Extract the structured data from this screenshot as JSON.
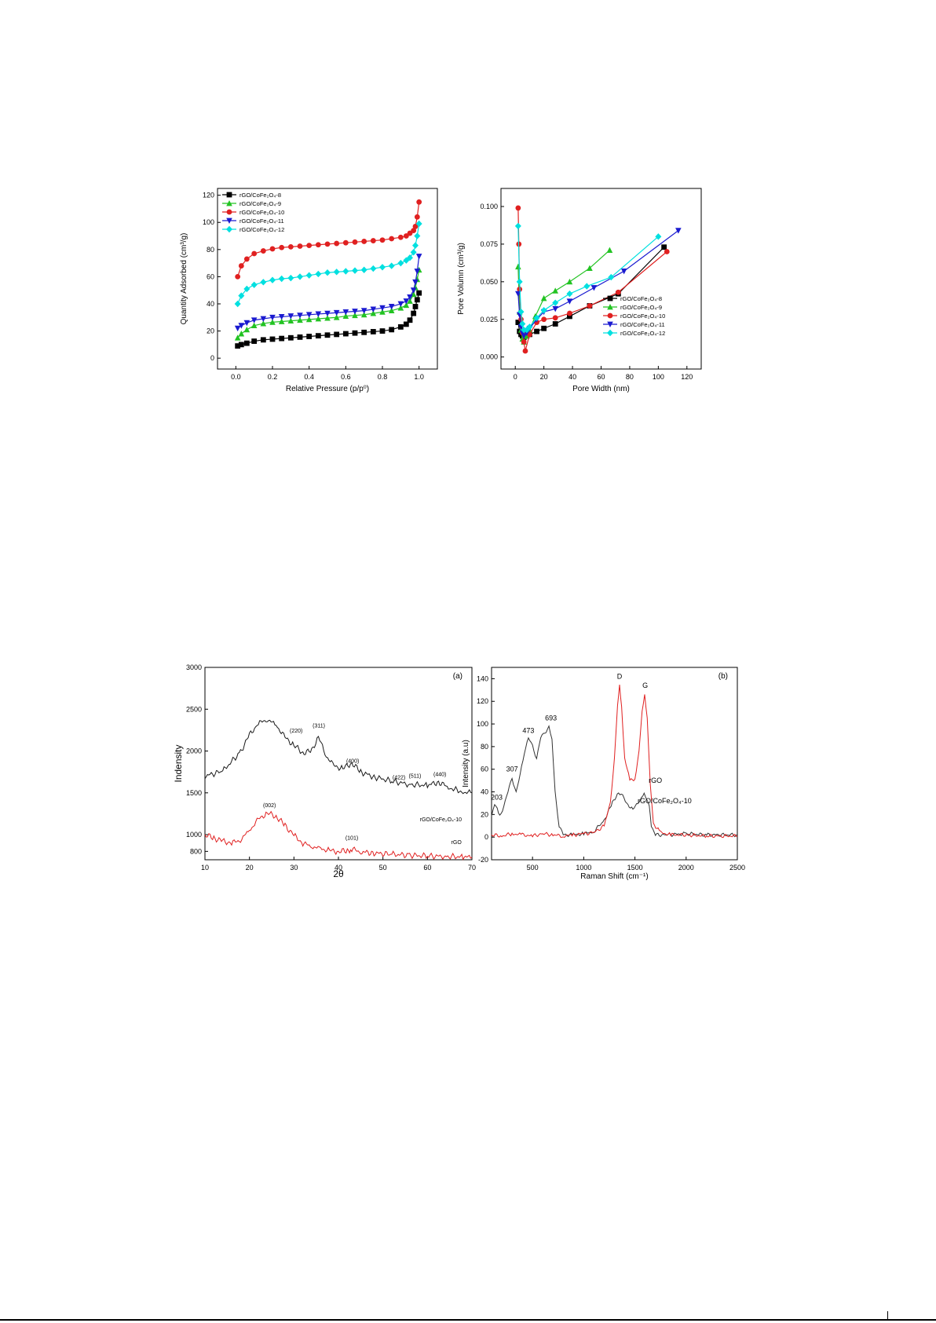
{
  "chart_data": [
    {
      "type": "line",
      "xlabel": "Relative Pressure (p/p⁰)",
      "ylabel": "Quantity Adsorbed (cm³/g)",
      "xlim": [
        -0.1,
        1.1
      ],
      "ylim": [
        -8,
        125
      ],
      "xticks": [
        "0.0",
        "0.2",
        "0.4",
        "0.6",
        "0.8",
        "1.0"
      ],
      "xtick_values": [
        0,
        0.2,
        0.4,
        0.6,
        0.8,
        1.0
      ],
      "yticks": [
        "0",
        "20",
        "40",
        "60",
        "80",
        "100",
        "120"
      ],
      "ytick_values": [
        0,
        20,
        40,
        60,
        80,
        100,
        120
      ],
      "legend_position": "top-left",
      "series": [
        {
          "name": "rGO/CoFe₂O₄-8",
          "color": "#000000",
          "marker": "square",
          "x": [
            0.01,
            0.03,
            0.06,
            0.1,
            0.15,
            0.2,
            0.25,
            0.3,
            0.35,
            0.4,
            0.45,
            0.5,
            0.55,
            0.6,
            0.65,
            0.7,
            0.75,
            0.8,
            0.85,
            0.9,
            0.93,
            0.95,
            0.97,
            0.98,
            0.99,
            1.0
          ],
          "y": [
            9,
            10,
            11,
            12.5,
            13.5,
            14,
            14.5,
            15,
            15.5,
            16,
            16.5,
            17,
            17.5,
            18,
            18.5,
            19,
            19.5,
            20,
            21,
            23,
            25,
            28,
            33,
            38,
            43,
            48
          ]
        },
        {
          "name": "rGO/CoFe₂O₄-9",
          "color": "#22c322",
          "marker": "triangle-up",
          "x": [
            0.01,
            0.03,
            0.06,
            0.1,
            0.15,
            0.2,
            0.25,
            0.3,
            0.35,
            0.4,
            0.45,
            0.5,
            0.55,
            0.6,
            0.65,
            0.7,
            0.75,
            0.8,
            0.85,
            0.9,
            0.93,
            0.95,
            0.97,
            0.98,
            0.99,
            1.0
          ],
          "y": [
            15,
            18,
            21,
            24,
            25.5,
            26.5,
            27,
            27.5,
            28,
            28.5,
            29,
            29.5,
            30,
            31,
            31.5,
            32,
            33,
            34,
            35,
            37,
            39,
            42,
            47,
            52,
            58,
            65
          ]
        },
        {
          "name": "rGO/CoFe₂O₄-10",
          "color": "#e02020",
          "marker": "circle",
          "x": [
            0.01,
            0.03,
            0.06,
            0.1,
            0.15,
            0.2,
            0.25,
            0.3,
            0.35,
            0.4,
            0.45,
            0.5,
            0.55,
            0.6,
            0.65,
            0.7,
            0.75,
            0.8,
            0.85,
            0.9,
            0.93,
            0.95,
            0.97,
            0.98,
            0.99,
            1.0
          ],
          "y": [
            60,
            68,
            73,
            77,
            79,
            80.5,
            81.5,
            82,
            82.5,
            83,
            83.5,
            84,
            84.5,
            85,
            85.5,
            86,
            86.5,
            87,
            88,
            89,
            90,
            92,
            94,
            97,
            104,
            115
          ]
        },
        {
          "name": "rGO/CoFe₂O₄-11",
          "color": "#1a1ad0",
          "marker": "triangle-down",
          "x": [
            0.01,
            0.03,
            0.06,
            0.1,
            0.15,
            0.2,
            0.25,
            0.3,
            0.35,
            0.4,
            0.45,
            0.5,
            0.55,
            0.6,
            0.65,
            0.7,
            0.75,
            0.8,
            0.85,
            0.9,
            0.93,
            0.95,
            0.97,
            0.98,
            0.99,
            1.0
          ],
          "y": [
            22,
            24,
            26,
            28,
            29,
            30,
            30.5,
            31,
            31.5,
            32,
            32.5,
            33,
            33.5,
            34,
            34.5,
            35,
            36,
            37,
            38,
            40,
            42,
            45,
            50,
            56,
            64,
            75
          ]
        },
        {
          "name": "rGO/CoFe₂O₄-12",
          "color": "#00e0e0",
          "marker": "star",
          "x": [
            0.01,
            0.03,
            0.06,
            0.1,
            0.15,
            0.2,
            0.25,
            0.3,
            0.35,
            0.4,
            0.45,
            0.5,
            0.55,
            0.6,
            0.65,
            0.7,
            0.75,
            0.8,
            0.85,
            0.9,
            0.93,
            0.95,
            0.97,
            0.98,
            0.99,
            1.0
          ],
          "y": [
            40,
            46,
            51,
            54,
            56,
            57.5,
            58.5,
            59,
            60,
            61,
            62,
            63,
            63.5,
            64,
            64.5,
            65,
            66,
            67,
            68,
            70,
            72,
            74,
            78,
            83,
            90,
            99
          ]
        }
      ]
    },
    {
      "type": "line",
      "xlabel": "Pore Width (nm)",
      "ylabel": "Pore Volumn (cm³/g)",
      "xlim": [
        -10,
        130
      ],
      "ylim": [
        -0.008,
        0.112
      ],
      "xticks": [
        "0",
        "20",
        "40",
        "60",
        "80",
        "100",
        "120"
      ],
      "xtick_values": [
        0,
        20,
        40,
        60,
        80,
        100,
        120
      ],
      "yticks": [
        "0.000",
        "0.025",
        "0.050",
        "0.075",
        "0.100"
      ],
      "ytick_values": [
        0,
        0.025,
        0.05,
        0.075,
        0.1
      ],
      "legend_position": "center-right",
      "series": [
        {
          "name": "rGO/CoFe₂O₄-8",
          "color": "#000000",
          "marker": "square",
          "x": [
            2,
            3,
            4,
            5,
            6,
            8,
            10,
            15,
            20,
            28,
            38,
            52,
            72,
            104
          ],
          "y": [
            0.023,
            0.017,
            0.015,
            0.014,
            0.013,
            0.014,
            0.015,
            0.017,
            0.019,
            0.022,
            0.027,
            0.034,
            0.042,
            0.073
          ]
        },
        {
          "name": "rGO/CoFe₂O₄-9",
          "color": "#22c322",
          "marker": "triangle-up",
          "x": [
            2,
            3,
            4,
            5,
            6,
            8,
            10,
            14,
            20,
            28,
            38,
            52,
            66
          ],
          "y": [
            0.06,
            0.03,
            0.018,
            0.012,
            0.01,
            0.014,
            0.018,
            0.027,
            0.039,
            0.044,
            0.05,
            0.059,
            0.071
          ]
        },
        {
          "name": "rGO/CoFe₂O₄-10",
          "color": "#e02020",
          "marker": "circle",
          "x": [
            2,
            2.5,
            3,
            4,
            5,
            6,
            7,
            10,
            15,
            20,
            28,
            38,
            52,
            72,
            106
          ],
          "y": [
            0.099,
            0.075,
            0.045,
            0.025,
            0.016,
            0.01,
            0.004,
            0.015,
            0.023,
            0.025,
            0.026,
            0.029,
            0.034,
            0.043,
            0.07
          ]
        },
        {
          "name": "rGO/CoFe₂O₄-11",
          "color": "#1a1ad0",
          "marker": "triangle-down",
          "x": [
            2,
            3,
            4,
            5,
            6,
            8,
            10,
            15,
            20,
            28,
            38,
            55,
            76,
            114
          ],
          "y": [
            0.042,
            0.028,
            0.02,
            0.016,
            0.014,
            0.016,
            0.019,
            0.025,
            0.03,
            0.032,
            0.037,
            0.046,
            0.057,
            0.084
          ]
        },
        {
          "name": "rGO/CoFe₂O₄-12",
          "color": "#00e0e0",
          "marker": "star",
          "x": [
            2,
            3,
            4,
            5,
            6,
            8,
            10,
            15,
            20,
            28,
            38,
            50,
            67,
            100
          ],
          "y": [
            0.087,
            0.05,
            0.03,
            0.022,
            0.018,
            0.018,
            0.02,
            0.026,
            0.031,
            0.036,
            0.042,
            0.047,
            0.053,
            0.08
          ]
        }
      ]
    },
    {
      "type": "line",
      "panel_label": "(a)",
      "xlabel": "2θ",
      "ylabel": "Indensity",
      "xlim": [
        10,
        70
      ],
      "ylim": [
        700,
        3000
      ],
      "xticks": [
        "10",
        "20",
        "30",
        "40",
        "50",
        "60",
        "70"
      ],
      "xtick_values": [
        10,
        20,
        30,
        40,
        50,
        60,
        70
      ],
      "yticks": [
        "800",
        "1000",
        "1500",
        "2000",
        "2500",
        "3000"
      ],
      "ytick_values": [
        800,
        1000,
        1500,
        2000,
        2500,
        3000
      ],
      "annotations": [
        {
          "text": "(220)",
          "x": 30.5,
          "y": 2220
        },
        {
          "text": "(311)",
          "x": 35.6,
          "y": 2280
        },
        {
          "text": "(400)",
          "x": 43.2,
          "y": 1860
        },
        {
          "text": "(422)",
          "x": 53.6,
          "y": 1660
        },
        {
          "text": "(511)",
          "x": 57.2,
          "y": 1680
        },
        {
          "text": "(440)",
          "x": 62.8,
          "y": 1700
        },
        {
          "text": "(002)",
          "x": 24.5,
          "y": 1330
        },
        {
          "text": "(101)",
          "x": 43,
          "y": 940
        },
        {
          "text": "rGO/CoFe₂O₄-10",
          "x": 63,
          "y": 1160
        },
        {
          "text": "rGO",
          "x": 66.5,
          "y": 890
        }
      ],
      "series": [
        {
          "name": "rGO/CoFe₂O₄-10",
          "color": "#1a1a1a",
          "x": [
            10,
            14,
            18,
            20,
            22,
            24,
            26,
            28,
            30,
            32,
            34,
            35.5,
            37,
            39,
            41,
            43,
            45,
            48,
            52,
            56,
            60,
            62.5,
            65,
            68,
            70
          ],
          "y": [
            1700,
            1760,
            1990,
            2190,
            2330,
            2380,
            2310,
            2160,
            2070,
            1980,
            2000,
            2180,
            1960,
            1820,
            1790,
            1860,
            1750,
            1690,
            1640,
            1600,
            1590,
            1630,
            1560,
            1510,
            1500
          ]
        },
        {
          "name": "rGO",
          "color": "#e02020",
          "x": [
            10,
            12,
            14,
            16,
            18,
            20,
            22,
            24,
            26,
            28,
            30,
            32,
            34,
            36,
            38,
            40,
            42,
            43,
            45,
            48,
            52,
            56,
            60,
            64,
            68,
            70
          ],
          "y": [
            1000,
            960,
            920,
            900,
            940,
            1050,
            1180,
            1260,
            1220,
            1110,
            990,
            900,
            860,
            830,
            810,
            800,
            810,
            830,
            795,
            780,
            765,
            755,
            745,
            740,
            735,
            730
          ]
        }
      ]
    },
    {
      "type": "line",
      "panel_label": "(b)",
      "xlabel": "Raman Shift (cm⁻¹)",
      "ylabel": "Intensity (a.u)",
      "xlim": [
        100,
        2500
      ],
      "ylim": [
        -20,
        150
      ],
      "xticks": [
        "500",
        "1000",
        "1500",
        "2000",
        "2500"
      ],
      "xtick_values": [
        500,
        1000,
        1500,
        2000,
        2500
      ],
      "yticks": [
        "-20",
        "0",
        "20",
        "40",
        "60",
        "80",
        "100",
        "120",
        "140"
      ],
      "ytick_values": [
        -20,
        0,
        20,
        40,
        60,
        80,
        100,
        120,
        140
      ],
      "annotations": [
        {
          "text": "203",
          "x": 150,
          "y": 33
        },
        {
          "text": "307",
          "x": 300,
          "y": 58
        },
        {
          "text": "473",
          "x": 460,
          "y": 92
        },
        {
          "text": "693",
          "x": 680,
          "y": 103
        },
        {
          "text": "D",
          "x": 1350,
          "y": 140
        },
        {
          "text": "G",
          "x": 1600,
          "y": 132
        },
        {
          "text": "rGO",
          "x": 1700,
          "y": 48
        },
        {
          "text": "rGO/CoFe₂O₄-10",
          "x": 1790,
          "y": 30
        }
      ],
      "series": [
        {
          "name": "rGO/CoFe₂O₄-10",
          "color": "#333333",
          "x": [
            100,
            130,
            180,
            220,
            260,
            300,
            340,
            380,
            420,
            460,
            500,
            540,
            580,
            620,
            660,
            690,
            720,
            760,
            800,
            900,
            1000,
            1100,
            1200,
            1280,
            1340,
            1380,
            1420,
            1480,
            1540,
            1590,
            1640,
            1660,
            1700,
            1800,
            2000,
            2200,
            2500
          ],
          "y": [
            20,
            30,
            18,
            28,
            40,
            52,
            40,
            55,
            75,
            88,
            80,
            70,
            88,
            92,
            98,
            85,
            40,
            10,
            2,
            2,
            3,
            5,
            15,
            30,
            40,
            36,
            30,
            24,
            32,
            38,
            28,
            10,
            2,
            2,
            3,
            2,
            2
          ]
        },
        {
          "name": "rGO",
          "color": "#e02020",
          "x": [
            100,
            200,
            300,
            400,
            500,
            600,
            700,
            800,
            900,
            1000,
            1100,
            1200,
            1260,
            1300,
            1330,
            1350,
            1370,
            1400,
            1450,
            1500,
            1540,
            1570,
            1595,
            1620,
            1650,
            1680,
            1750,
            1850,
            2000,
            2200,
            2500
          ],
          "y": [
            2,
            1,
            3,
            2,
            1,
            3,
            2,
            1,
            2,
            3,
            4,
            10,
            30,
            70,
            115,
            133,
            115,
            70,
            50,
            52,
            75,
            110,
            126,
            105,
            45,
            12,
            4,
            2,
            2,
            1,
            1
          ]
        }
      ]
    }
  ]
}
